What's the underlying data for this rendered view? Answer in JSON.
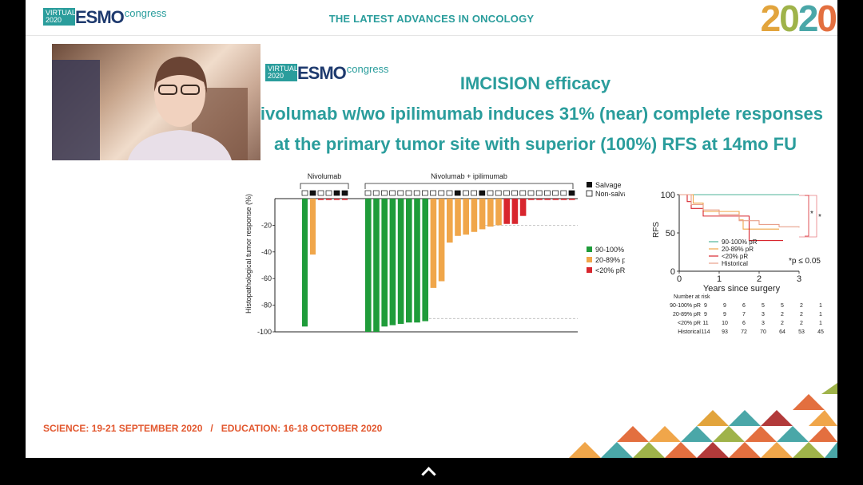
{
  "header": {
    "logo": {
      "virtual": "VIRTUAL",
      "year": "2020",
      "brand": "ESMO",
      "suffix": "congress"
    },
    "title": "THE LATEST ADVANCES IN ONCOLOGY",
    "year_digits": [
      "2",
      "0",
      "2",
      "0"
    ]
  },
  "slide": {
    "logo": {
      "virtual": "VIRTUAL",
      "year": "2020",
      "brand": "ESMO",
      "suffix": "congress"
    },
    "title": "IMCISION efficacy",
    "subtitle_line1": "Nivolumab w/wo ipilimumab induces 31% (near) complete responses",
    "subtitle_line2": "at the primary tumor site with superior (100%) RFS at 14mo FU"
  },
  "footer": {
    "text": "SCIENCE: 19-21 SEPTEMBER 2020   /   EDUCATION: 16-18 OCTOBER 2020"
  },
  "nav": {
    "chevron_icon": "chevron-up-icon"
  },
  "colors": {
    "green": "#1f9c3a",
    "orange": "#f0a64a",
    "red": "#d8262e",
    "teal": "#2a9d9c",
    "footer": "#e2572e"
  },
  "chart_data": [
    {
      "type": "bar",
      "ylabel": "Histopathological tumor response (%)",
      "ylim": [
        -100,
        0
      ],
      "yticks": [
        "-20",
        "-40",
        "-60",
        "-80",
        "-100"
      ],
      "reference_lines": [
        -20,
        -90
      ],
      "groups": [
        {
          "label": "Nivolumab",
          "count": 6
        },
        {
          "label": "Nivolumab + ipilimumab",
          "count": 26
        }
      ],
      "salvage_markers": {
        "nivolumab": [
          0,
          1,
          0,
          0,
          1,
          1
        ],
        "combo": [
          0,
          0,
          0,
          0,
          0,
          0,
          0,
          0,
          0,
          0,
          0,
          1,
          0,
          0,
          1,
          0,
          0,
          0,
          0,
          0,
          0,
          0,
          0,
          0,
          0,
          1
        ]
      },
      "legend_markers": [
        {
          "label": "Salvage",
          "filled": true
        },
        {
          "label": "Non-salvage",
          "filled": false
        }
      ],
      "series": [
        {
          "name": "90-100% pR",
          "color": "#1f9c3a"
        },
        {
          "name": "20-89% pR",
          "color": "#f0a64a"
        },
        {
          "name": "<20% pR",
          "color": "#d8262e"
        }
      ],
      "nivolumab_values": [
        -96,
        -42,
        -1,
        -1,
        -1,
        -1
      ],
      "nivolumab_colors": [
        0,
        1,
        2,
        2,
        2,
        2
      ],
      "combo_values": [
        -100,
        -100,
        -96,
        -95,
        -94,
        -93,
        -93,
        -92,
        -67,
        -62,
        -33,
        -28,
        -27,
        -25,
        -23,
        -21,
        -20,
        -19,
        -19,
        -13,
        -1,
        -1,
        -1,
        -1,
        -1,
        -1
      ],
      "combo_colors": [
        0,
        0,
        0,
        0,
        0,
        0,
        0,
        0,
        1,
        1,
        1,
        1,
        1,
        1,
        1,
        1,
        1,
        2,
        2,
        2,
        2,
        2,
        2,
        2,
        2,
        2
      ]
    },
    {
      "type": "line",
      "xlabel": "Years since surgery",
      "ylabel": "RFS",
      "xlim": [
        0,
        3
      ],
      "ylim": [
        0,
        100
      ],
      "xticks": [
        "0",
        "1",
        "2",
        "3"
      ],
      "yticks": [
        "0",
        "50",
        "100"
      ],
      "annotation": "*p ≤ 0.05",
      "significance": [
        "*",
        "*"
      ],
      "series": [
        {
          "name": "90-100% pR",
          "color": "#4fb39a",
          "points": [
            [
              0,
              100
            ],
            [
              3,
              100
            ]
          ]
        },
        {
          "name": "20-89% pR",
          "color": "#f0a64a",
          "points": [
            [
              0,
              100
            ],
            [
              0.35,
              89
            ],
            [
              0.6,
              78
            ],
            [
              1.5,
              67
            ],
            [
              1.6,
              55
            ],
            [
              2.5,
              55
            ]
          ]
        },
        {
          "name": "<20% pR",
          "color": "#d8262e",
          "points": [
            [
              0,
              100
            ],
            [
              0.2,
              91
            ],
            [
              0.3,
              82
            ],
            [
              0.6,
              72
            ],
            [
              1.7,
              72
            ],
            [
              1.75,
              40
            ],
            [
              2.6,
              40
            ]
          ]
        },
        {
          "name": "Historical",
          "color": "#e8a08a",
          "points": [
            [
              0,
              100
            ],
            [
              0.3,
              87
            ],
            [
              0.6,
              80
            ],
            [
              1,
              74
            ],
            [
              1.5,
              66
            ],
            [
              2,
              61
            ],
            [
              2.5,
              58
            ],
            [
              3,
              57
            ]
          ]
        }
      ],
      "risk_table": {
        "title": "Number at risk",
        "rows": [
          {
            "label": "90-100% pR",
            "values": [
              "9",
              "9",
              "6",
              "5",
              "5",
              "2",
              "1"
            ]
          },
          {
            "label": "20-89% pR",
            "values": [
              "9",
              "9",
              "7",
              "3",
              "2",
              "2",
              "1"
            ]
          },
          {
            "label": "<20% pR",
            "values": [
              "11",
              "10",
              "6",
              "3",
              "2",
              "2",
              "1"
            ]
          },
          {
            "label": "Historical",
            "values": [
              "114",
              "93",
              "72",
              "70",
              "64",
              "53",
              "45"
            ]
          }
        ]
      }
    }
  ]
}
